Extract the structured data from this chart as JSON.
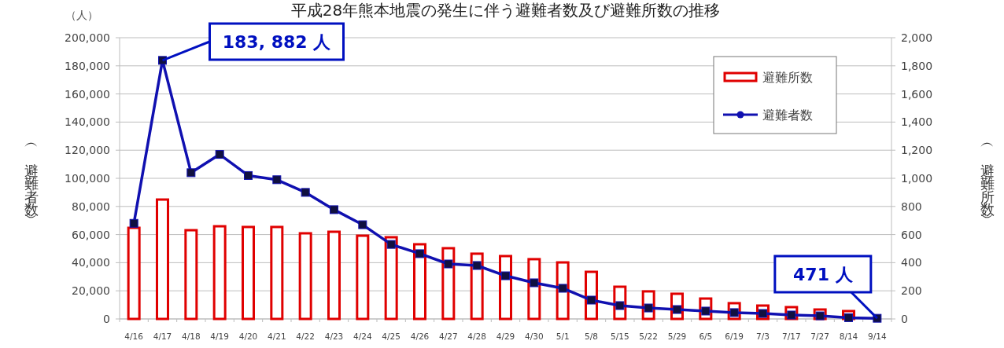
{
  "chart_data": {
    "type": "bar",
    "title": "平成28年熊本地震の発生に伴う避難者数及び避難所数の推移",
    "ylabel": "（避難者数）",
    "y2label": "（避難所数）",
    "categories": [
      "4/16",
      "4/17",
      "4/18",
      "4/19",
      "4/20",
      "4/21",
      "4/22",
      "4/23",
      "4/24",
      "4/25",
      "4/26",
      "4/27",
      "4/28",
      "4/29",
      "4/30",
      "5/1",
      "5/8",
      "5/15",
      "5/22",
      "5/29",
      "6/5",
      "6/19",
      "7/3",
      "7/17",
      "7/27",
      "8/14",
      "9/14"
    ],
    "series": [
      {
        "name": "避難所数",
        "axis": "y2",
        "color": "#e00000",
        "values": [
          648,
          849,
          631,
          659,
          654,
          654,
          609,
          620,
          592,
          581,
          531,
          503,
          464,
          447,
          425,
          402,
          335,
          229,
          196,
          179,
          145,
          112,
          95,
          84,
          67,
          56,
          null
        ]
      },
      {
        "name": "避難者数",
        "type": "line",
        "axis": "y",
        "color": "#1010b0",
        "marker": "square",
        "values": [
          68000,
          183882,
          104000,
          117000,
          102000,
          99000,
          90000,
          77700,
          67000,
          53000,
          46400,
          39100,
          38000,
          30700,
          25700,
          21800,
          13400,
          9500,
          7800,
          6700,
          5600,
          4500,
          3900,
          2800,
          2200,
          900,
          471
        ]
      }
    ],
    "ylim": [
      0,
      200000
    ],
    "yticks": [
      0,
      {
        "value": 20000,
        "label": "20,000"
      },
      {
        "value": 40000,
        "label": "40,000"
      },
      {
        "value": 60000,
        "label": "60,000"
      },
      {
        "value": 80000,
        "label": "80,000"
      },
      {
        "value": 100000,
        "label": "100,000"
      },
      {
        "value": 120000,
        "label": "120,000"
      },
      {
        "value": 140000,
        "label": "140,000"
      },
      {
        "value": 160000,
        "label": "160,000"
      },
      {
        "value": 180000,
        "label": "180,000"
      },
      {
        "value": 200000,
        "label": "200,000"
      }
    ],
    "y2lim": [
      0,
      2000
    ],
    "y2ticks": [
      0,
      200,
      400,
      600,
      800,
      {
        "value": 1000,
        "label": "1,000"
      },
      {
        "value": 1200,
        "label": "1,200"
      },
      {
        "value": 1400,
        "label": "1,400"
      },
      {
        "value": 1600,
        "label": "1,600"
      },
      {
        "value": 1800,
        "label": "1,800"
      },
      {
        "value": 2000,
        "label": "2,000"
      }
    ],
    "grid": "y",
    "legend": "top right",
    "annotations": [
      "（人）",
      {
        "text": "183, 882 人",
        "x": "4/17",
        "y": 183882
      },
      {
        "text": "471 人",
        "x": "9/14",
        "y": 471
      }
    ]
  }
}
